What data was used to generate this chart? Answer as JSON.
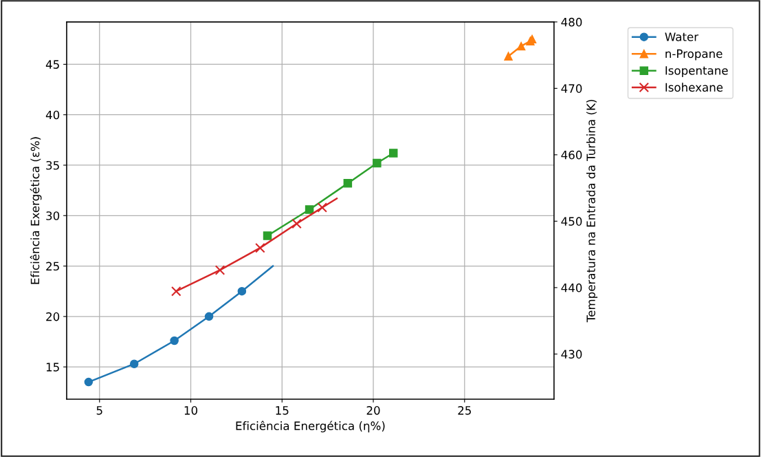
{
  "chart_data": {
    "type": "line",
    "xlabel": "Eficiência Energética (η%)",
    "ylabel": "Eficiência Exergética (ε%)",
    "y2label": "Temperatura na Entrada da Turbina (K)",
    "xlim": [
      3.2,
      29.9
    ],
    "xticks": [
      5,
      10,
      15,
      20,
      25
    ],
    "ylim": [
      11.8,
      49.2
    ],
    "yticks": [
      15,
      20,
      25,
      30,
      35,
      40,
      45
    ],
    "y2lim": [
      423.2,
      480
    ],
    "y2ticks": [
      430,
      440,
      450,
      460,
      470,
      480
    ],
    "grid": true,
    "legend": "top right",
    "line_style": "solid",
    "series": [
      {
        "name": "Water",
        "color": "#1f77b4",
        "marker": "circle",
        "x": [
          4.4,
          6.9,
          9.1,
          11.0,
          12.8
        ],
        "values": [
          13.5,
          15.3,
          17.6,
          20.0,
          22.5
        ]
      },
      {
        "color": "#1f77b4",
        "marker": "none",
        "x": [
          12.8,
          14.5
        ],
        "values": [
          22.5,
          25.0
        ]
      },
      {
        "name": "n-Propane",
        "color": "#ff7f0e",
        "marker": "triangle",
        "x": [
          27.4,
          28.1,
          28.6,
          28.7
        ],
        "values": [
          45.8,
          46.8,
          47.3,
          47.5
        ]
      },
      {
        "name": "Isopentane",
        "color": "#2ca02c",
        "marker": "square",
        "x": [
          14.2,
          16.5,
          18.6,
          20.2,
          21.1
        ],
        "values": [
          28.0,
          30.6,
          33.2,
          35.2,
          36.2
        ]
      },
      {
        "name": "Isohexane",
        "color": "#d62728",
        "marker": "cross",
        "x": [
          9.2,
          11.6,
          13.8,
          15.8,
          17.2
        ],
        "values": [
          22.5,
          24.6,
          26.8,
          29.2,
          30.8
        ]
      },
      {
        "color": "#d62728",
        "marker": "none",
        "x": [
          17.2,
          18.0
        ],
        "values": [
          30.8,
          31.7
        ]
      }
    ]
  }
}
